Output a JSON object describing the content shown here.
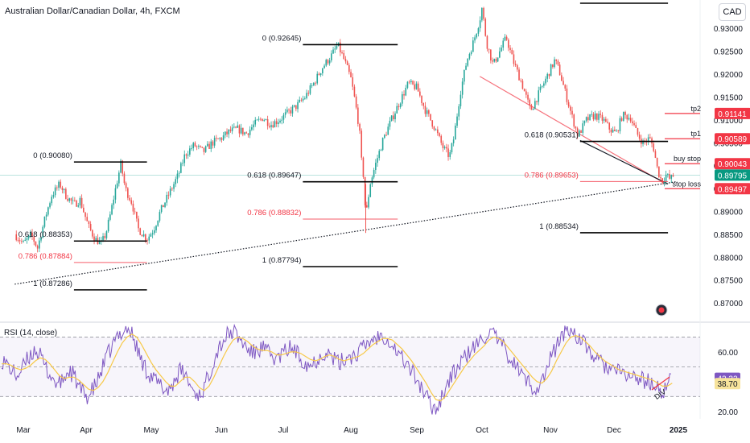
{
  "header": {
    "title": "Australian Dollar/Canadian Dollar, 4h, FXCM",
    "currency_button": "CAD"
  },
  "rsi": {
    "label": "RSI (14, close)",
    "value": "42.32",
    "ma_value": "38.70",
    "divergence_label": "DIV"
  },
  "colors": {
    "bull": "#26a69a",
    "bear": "#ef5350",
    "fib_black": "#000000",
    "fib_red": "#f23645",
    "current_price_bg": "#089981",
    "rsi_line": "#7e57c2",
    "rsi_ma": "#f7c948"
  },
  "chart_data": [
    {
      "type": "candlestick",
      "title": "Australian Dollar/Canadian Dollar, 4h, FXCM",
      "x_ticks": [
        "Mar",
        "Apr",
        "May",
        "Jun",
        "Jul",
        "Aug",
        "Sep",
        "Oct",
        "Nov",
        "Dec",
        "2025"
      ],
      "y_ticks": [
        "0.93000",
        "0.92500",
        "0.92000",
        "0.91500",
        "0.91000",
        "0.90500",
        "0.90000",
        "0.89500",
        "0.89000",
        "0.88500",
        "0.88000",
        "0.87500",
        "0.87000"
      ],
      "ylim": [
        0.8665,
        0.9355
      ],
      "current_price": "0.89795",
      "price_path": [
        [
          "Feb 26",
          0.885
        ],
        [
          "Mar 1",
          0.883
        ],
        [
          "Mar 5",
          0.8848
        ],
        [
          "Mar 8",
          0.882
        ],
        [
          "Mar 12",
          0.889
        ],
        [
          "Mar 15",
          0.8935
        ],
        [
          "Mar 19",
          0.896
        ],
        [
          "Mar 22",
          0.8935
        ],
        [
          "Mar 26",
          0.8915
        ],
        [
          "Mar 29",
          0.8925
        ],
        [
          "Apr 2",
          0.8868
        ],
        [
          "Apr 5",
          0.884
        ],
        [
          "Apr 8",
          0.883
        ],
        [
          "Apr 10",
          0.885
        ],
        [
          "Apr 12",
          0.889
        ],
        [
          "Apr 15",
          0.896
        ],
        [
          "Apr 17",
          0.9004
        ],
        [
          "Apr 19",
          0.895
        ],
        [
          "Apr 22",
          0.892
        ],
        [
          "Apr 25",
          0.8862
        ],
        [
          "Apr 29",
          0.884
        ],
        [
          "May 2",
          0.886
        ],
        [
          "May 5",
          0.89
        ],
        [
          "May 9",
          0.894
        ],
        [
          "May 13",
          0.898
        ],
        [
          "May 16",
          0.9025
        ],
        [
          "May 20",
          0.9045
        ],
        [
          "May 24",
          0.903
        ],
        [
          "May 28",
          0.905
        ],
        [
          "Jun 1",
          0.906
        ],
        [
          "Jun 5",
          0.9075
        ],
        [
          "Jun 9",
          0.908
        ],
        [
          "Jun 13",
          0.907
        ],
        [
          "Jun 17",
          0.909
        ],
        [
          "Jun 21",
          0.9105
        ],
        [
          "Jun 25",
          0.909
        ],
        [
          "Jun 29",
          0.91
        ],
        [
          "Jul 3",
          0.9115
        ],
        [
          "Jul 7",
          0.913
        ],
        [
          "Jul 11",
          0.915
        ],
        [
          "Jul 15",
          0.918
        ],
        [
          "Jul 19",
          0.9215
        ],
        [
          "Jul 23",
          0.924
        ],
        [
          "Jul 26",
          0.9264
        ],
        [
          "Jul 29",
          0.923
        ],
        [
          "Aug 1",
          0.919
        ],
        [
          "Aug 3",
          0.914
        ],
        [
          "Aug 5",
          0.908
        ],
        [
          "Aug 6",
          0.901
        ],
        [
          "Aug 7",
          0.8975
        ],
        [
          "Aug 8",
          0.8885
        ],
        [
          "Aug 10",
          0.896
        ],
        [
          "Aug 13",
          0.901
        ],
        [
          "Aug 16",
          0.9055
        ],
        [
          "Aug 20",
          0.91
        ],
        [
          "Aug 24",
          0.914
        ],
        [
          "Aug 28",
          0.918
        ],
        [
          "Sep 1",
          0.917
        ],
        [
          "Sep 5",
          0.912
        ],
        [
          "Sep 9",
          0.9085
        ],
        [
          "Sep 13",
          0.904
        ],
        [
          "Sep 16",
          0.902
        ],
        [
          "Sep 18",
          0.906
        ],
        [
          "Sep 21",
          0.916
        ],
        [
          "Sep 24",
          0.923
        ],
        [
          "Sep 27",
          0.927
        ],
        [
          "Sep 30",
          0.932
        ],
        [
          "Oct 1",
          0.9345
        ],
        [
          "Oct 3",
          0.927
        ],
        [
          "Oct 6",
          0.922
        ],
        [
          "Oct 9",
          0.925
        ],
        [
          "Oct 12",
          0.928
        ],
        [
          "Oct 15",
          0.923
        ],
        [
          "Oct 19",
          0.918
        ],
        [
          "Oct 23",
          0.912
        ],
        [
          "Oct 27",
          0.916
        ],
        [
          "Oct 31",
          0.92
        ],
        [
          "Nov 3",
          0.923
        ],
        [
          "Nov 5",
          0.921
        ],
        [
          "Nov 8",
          0.916
        ],
        [
          "Nov 11",
          0.911
        ],
        [
          "Nov 14",
          0.9065
        ],
        [
          "Nov 18",
          0.91
        ],
        [
          "Nov 22",
          0.911
        ],
        [
          "Nov 26",
          0.91
        ],
        [
          "Nov 29",
          0.908
        ],
        [
          "Dec 2",
          0.907
        ],
        [
          "Dec 5",
          0.911
        ],
        [
          "Dec 9",
          0.9105
        ],
        [
          "Dec 12",
          0.907
        ],
        [
          "Dec 15",
          0.905
        ],
        [
          "Dec 18",
          0.906
        ],
        [
          "Dec 20",
          0.904
        ],
        [
          "Dec 22",
          0.899
        ],
        [
          "Dec 24",
          0.8965
        ],
        [
          "Dec 26",
          0.898
        ],
        [
          "Dec 28",
          0.897
        ],
        [
          "Dec 30",
          0.898
        ]
      ],
      "fib_levels": [
        {
          "label": "0 (0.90080)",
          "price": 0.9008,
          "from": "Mar 26",
          "to": "Apr 29",
          "style": "black"
        },
        {
          "label": "0.618 (0.88353)",
          "price": 0.88353,
          "from": "Mar 26",
          "to": "Apr 29",
          "style": "black"
        },
        {
          "label": "0.786 (0.87884)",
          "price": 0.87884,
          "from": "Mar 26",
          "to": "Apr 29",
          "style": "red"
        },
        {
          "label": "1 (0.87286)",
          "price": 0.87286,
          "from": "Mar 26",
          "to": "Apr 29",
          "style": "black"
        },
        {
          "label": "0 (0.92645)",
          "price": 0.92645,
          "from": "Jul 10",
          "to": "Aug 23",
          "style": "black"
        },
        {
          "label": "0.618 (0.89647)",
          "price": 0.89647,
          "from": "Jul 10",
          "to": "Aug 23",
          "style": "black"
        },
        {
          "label": "0.786 (0.88832)",
          "price": 0.88832,
          "from": "Jul 10",
          "to": "Aug 23",
          "style": "red"
        },
        {
          "label": "1 (0.87794)",
          "price": 0.87794,
          "from": "Jul 10",
          "to": "Aug 23",
          "style": "black"
        },
        {
          "label": "0.618 (0.90531)",
          "price": 0.90531,
          "from": "Nov 15",
          "to": "Dec 27",
          "style": "black"
        },
        {
          "label": "0.786 (0.89653)",
          "price": 0.89653,
          "from": "Nov 15",
          "to": "Dec 27",
          "style": "red"
        },
        {
          "label": "1 (0.88534)",
          "price": 0.88534,
          "from": "Nov 15",
          "to": "Dec 27",
          "style": "black"
        }
      ],
      "top_level_line": {
        "price": 0.9355,
        "from": "Nov 15",
        "to": "Dec 27"
      },
      "trade_levels": [
        {
          "label": "tp2",
          "price": 0.91141,
          "price_text": "0.91141"
        },
        {
          "label": "tp1",
          "price": 0.90589,
          "price_text": "0.90589"
        },
        {
          "label": "buy stop",
          "price": 0.90043,
          "price_text": "0.90043"
        },
        {
          "label": "stop loss",
          "price": 0.89497,
          "price_text": "0.89497"
        }
      ],
      "trendlines": [
        {
          "style": "dotted",
          "from": [
            "Feb 26",
            0.8741
          ],
          "to": [
            "Dec 31",
            0.8965
          ]
        },
        {
          "style": "red",
          "from": [
            "Sep 30",
            0.9195
          ],
          "to": [
            "Dec 26",
            0.896
          ]
        },
        {
          "style": "black",
          "from": [
            "Nov 15",
            0.9055
          ],
          "to": [
            "Dec 27",
            0.896
          ]
        }
      ],
      "legend": "none",
      "grid": false
    },
    {
      "type": "line",
      "title": "RSI (14, close)",
      "y_ticks": [
        "60.00",
        "20.00"
      ],
      "ylim": [
        15,
        80
      ],
      "band": [
        30,
        70
      ],
      "mid_line": 50,
      "series": [
        {
          "values": [
            55,
            52,
            48,
            44,
            47,
            53,
            58,
            62,
            57,
            50,
            45,
            40,
            38,
            43,
            47,
            44,
            36,
            32,
            30,
            35,
            41,
            50,
            58,
            64,
            70,
            74,
            76,
            72,
            63,
            54,
            48,
            44,
            40,
            37,
            34,
            36,
            42,
            47,
            45,
            38,
            33,
            31,
            36,
            45,
            55,
            63,
            68,
            72,
            74,
            70,
            66,
            62,
            59,
            61,
            63,
            60,
            57,
            55,
            58,
            61,
            63,
            60,
            56,
            53,
            51,
            54,
            57,
            60,
            58,
            55,
            52,
            55,
            58,
            57,
            60,
            63,
            66,
            69,
            70,
            72,
            69,
            65,
            60,
            56,
            52,
            47,
            42,
            36,
            30,
            24,
            21,
            28,
            36,
            42,
            47,
            52,
            56,
            60,
            63,
            66,
            70,
            73,
            71,
            67,
            63,
            58,
            53,
            49,
            44,
            40,
            37,
            36,
            40,
            48,
            57,
            64,
            70,
            74,
            75,
            72,
            68,
            64,
            60,
            56,
            53,
            51,
            49,
            47,
            46,
            45,
            44,
            43,
            42,
            41,
            40,
            38,
            35,
            33,
            38,
            42
          ]
        },
        {
          "values": [
            52,
            52,
            51,
            49,
            48,
            49,
            51,
            54,
            56,
            55,
            52,
            48,
            44,
            42,
            43,
            43,
            41,
            38,
            35,
            34,
            36,
            40,
            46,
            53,
            60,
            66,
            70,
            72,
            70,
            65,
            59,
            53,
            48,
            44,
            40,
            37,
            37,
            40,
            43,
            43,
            40,
            36,
            34,
            37,
            43,
            50,
            57,
            63,
            68,
            70,
            69,
            67,
            64,
            62,
            61,
            61,
            60,
            58,
            58,
            59,
            60,
            60,
            59,
            57,
            55,
            54,
            55,
            57,
            58,
            57,
            55,
            54,
            55,
            56,
            57,
            59,
            62,
            65,
            67,
            69,
            69,
            68,
            65,
            62,
            58,
            54,
            49,
            44,
            39,
            33,
            28,
            27,
            30,
            35,
            40,
            45,
            50,
            54,
            58,
            61,
            64,
            68,
            70,
            69,
            67,
            63,
            59,
            55,
            51,
            47,
            43,
            40,
            39,
            42,
            47,
            54,
            60,
            66,
            70,
            71,
            70,
            67,
            64,
            60,
            57,
            54,
            52,
            50,
            48,
            47,
            46,
            45,
            44,
            43,
            42,
            41,
            39,
            37,
            37,
            39
          ]
        }
      ],
      "current_value": "42.32",
      "current_ma_value": "38.70",
      "annotation": "DIV",
      "legend": "none"
    }
  ]
}
